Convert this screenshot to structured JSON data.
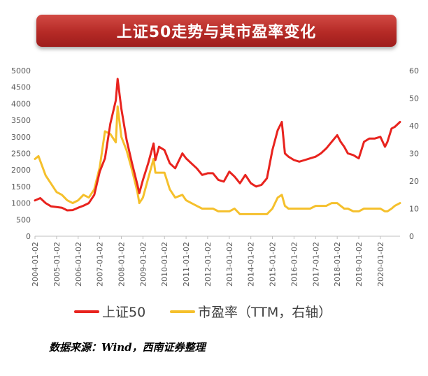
{
  "header": {
    "title": "上证50走势与其市盈率变化"
  },
  "source": "数据来源：Wind，西南证券整理",
  "colors": {
    "banner": "#b52a26",
    "index_line": "#e8231e",
    "pe_line": "#f5c02c",
    "axis_text": "#595959"
  },
  "chart_data": {
    "type": "line",
    "title": "上证50走势与其市盈率变化",
    "grid": false,
    "legend_position": "bottom",
    "x_tick_labels": [
      "2004-01-02",
      "2005-01-02",
      "2006-01-02",
      "2007-01-02",
      "2008-01-02",
      "2009-01-02",
      "2010-01-02",
      "2011-01-02",
      "2012-01-02",
      "2013-01-02",
      "2014-01-02",
      "2015-01-02",
      "2016-01-02",
      "2017-01-02",
      "2018-01-02",
      "2019-01-02",
      "2020-01-02"
    ],
    "xlim": [
      "2004-01-02",
      "2020-11-30"
    ],
    "ylim": [
      0,
      5000
    ],
    "y_ticks": [
      0,
      500,
      1000,
      1500,
      2000,
      2500,
      3000,
      3500,
      4000,
      4500,
      5000
    ],
    "y2lim": [
      0,
      60
    ],
    "y2_ticks": [
      0,
      10,
      20,
      30,
      40,
      50,
      60
    ],
    "series": [
      {
        "name": "上证50",
        "axis": "left",
        "x": [
          "2004-01-02",
          "2004-04-01",
          "2004-07-01",
          "2004-10-01",
          "2005-01-02",
          "2005-04-01",
          "2005-07-01",
          "2005-10-01",
          "2006-01-02",
          "2006-04-01",
          "2006-07-01",
          "2006-10-01",
          "2007-01-02",
          "2007-04-01",
          "2007-07-01",
          "2007-10-01",
          "2007-11-01",
          "2008-01-02",
          "2008-04-01",
          "2008-07-01",
          "2008-10-01",
          "2008-11-01",
          "2009-01-02",
          "2009-04-01",
          "2009-07-01",
          "2009-08-01",
          "2009-10-01",
          "2010-01-02",
          "2010-04-01",
          "2010-07-01",
          "2010-11-01",
          "2011-01-02",
          "2011-04-01",
          "2011-07-01",
          "2011-10-01",
          "2012-01-02",
          "2012-04-01",
          "2012-07-01",
          "2012-10-01",
          "2013-01-02",
          "2013-04-01",
          "2013-07-01",
          "2013-10-01",
          "2014-01-02",
          "2014-04-01",
          "2014-07-01",
          "2014-10-01",
          "2015-01-02",
          "2015-04-01",
          "2015-06-10",
          "2015-08-01",
          "2015-10-01",
          "2016-01-02",
          "2016-04-01",
          "2016-07-01",
          "2016-10-01",
          "2017-01-02",
          "2017-04-01",
          "2017-07-01",
          "2017-10-01",
          "2018-01-02",
          "2018-03-01",
          "2018-05-01",
          "2018-07-01",
          "2018-10-01",
          "2019-01-02",
          "2019-04-01",
          "2019-07-01",
          "2019-10-01",
          "2020-01-02",
          "2020-03-20",
          "2020-05-01",
          "2020-07-10",
          "2020-09-01",
          "2020-11-30"
        ],
        "values": [
          1080,
          1150,
          1000,
          900,
          880,
          860,
          780,
          790,
          860,
          920,
          1000,
          1250,
          1950,
          2350,
          3400,
          4100,
          4750,
          3850,
          2900,
          2200,
          1550,
          1300,
          1700,
          2200,
          2800,
          2300,
          2700,
          2600,
          2200,
          2050,
          2500,
          2350,
          2200,
          2050,
          1850,
          1900,
          1900,
          1700,
          1650,
          1950,
          1800,
          1600,
          1850,
          1600,
          1500,
          1550,
          1750,
          2600,
          3200,
          3450,
          2500,
          2400,
          2300,
          2250,
          2300,
          2350,
          2400,
          2500,
          2650,
          2850,
          3050,
          2850,
          2700,
          2500,
          2450,
          2350,
          2850,
          2950,
          2950,
          3000,
          2700,
          2850,
          3250,
          3300,
          3450
        ]
      },
      {
        "name": "市盈率（TTM，右轴）",
        "axis": "right",
        "x": [
          "2004-01-02",
          "2004-03-01",
          "2004-07-01",
          "2004-10-01",
          "2005-01-02",
          "2005-04-01",
          "2005-07-01",
          "2005-10-01",
          "2006-01-02",
          "2006-04-01",
          "2006-07-01",
          "2006-10-01",
          "2007-01-02",
          "2007-04-01",
          "2007-07-01",
          "2007-10-01",
          "2007-11-01",
          "2008-01-02",
          "2008-04-01",
          "2008-07-01",
          "2008-10-01",
          "2008-11-01",
          "2009-01-02",
          "2009-04-01",
          "2009-07-01",
          "2009-08-01",
          "2009-10-01",
          "2010-01-02",
          "2010-04-01",
          "2010-07-01",
          "2010-11-01",
          "2011-01-02",
          "2011-04-01",
          "2011-07-01",
          "2011-10-01",
          "2012-01-02",
          "2012-04-01",
          "2012-07-01",
          "2012-10-01",
          "2013-01-02",
          "2013-04-01",
          "2013-07-01",
          "2013-10-01",
          "2014-01-02",
          "2014-04-01",
          "2014-07-01",
          "2014-10-01",
          "2015-01-02",
          "2015-04-01",
          "2015-06-10",
          "2015-08-01",
          "2015-10-01",
          "2016-01-02",
          "2016-04-01",
          "2016-07-01",
          "2016-10-01",
          "2017-01-02",
          "2017-04-01",
          "2017-07-01",
          "2017-10-01",
          "2018-01-02",
          "2018-03-01",
          "2018-05-01",
          "2018-07-01",
          "2018-10-01",
          "2019-01-02",
          "2019-04-01",
          "2019-07-01",
          "2019-10-01",
          "2020-01-02",
          "2020-03-20",
          "2020-05-01",
          "2020-07-10",
          "2020-09-01",
          "2020-11-30"
        ],
        "values": [
          28,
          29,
          22,
          19,
          16,
          15,
          13,
          12,
          13,
          15,
          14,
          17,
          25,
          38,
          37,
          34,
          47,
          36,
          31,
          24,
          16,
          12,
          14,
          21,
          28,
          23,
          23,
          23,
          17,
          14,
          15,
          13,
          12,
          11,
          10,
          10,
          10,
          9,
          9,
          9,
          10,
          8,
          8,
          8,
          8,
          8,
          8,
          10,
          14,
          15,
          11,
          10,
          10,
          10,
          10,
          10,
          11,
          11,
          11,
          12,
          12,
          11,
          10,
          10,
          9,
          9,
          10,
          10,
          10,
          10,
          9,
          9,
          10,
          11,
          12
        ]
      }
    ]
  }
}
